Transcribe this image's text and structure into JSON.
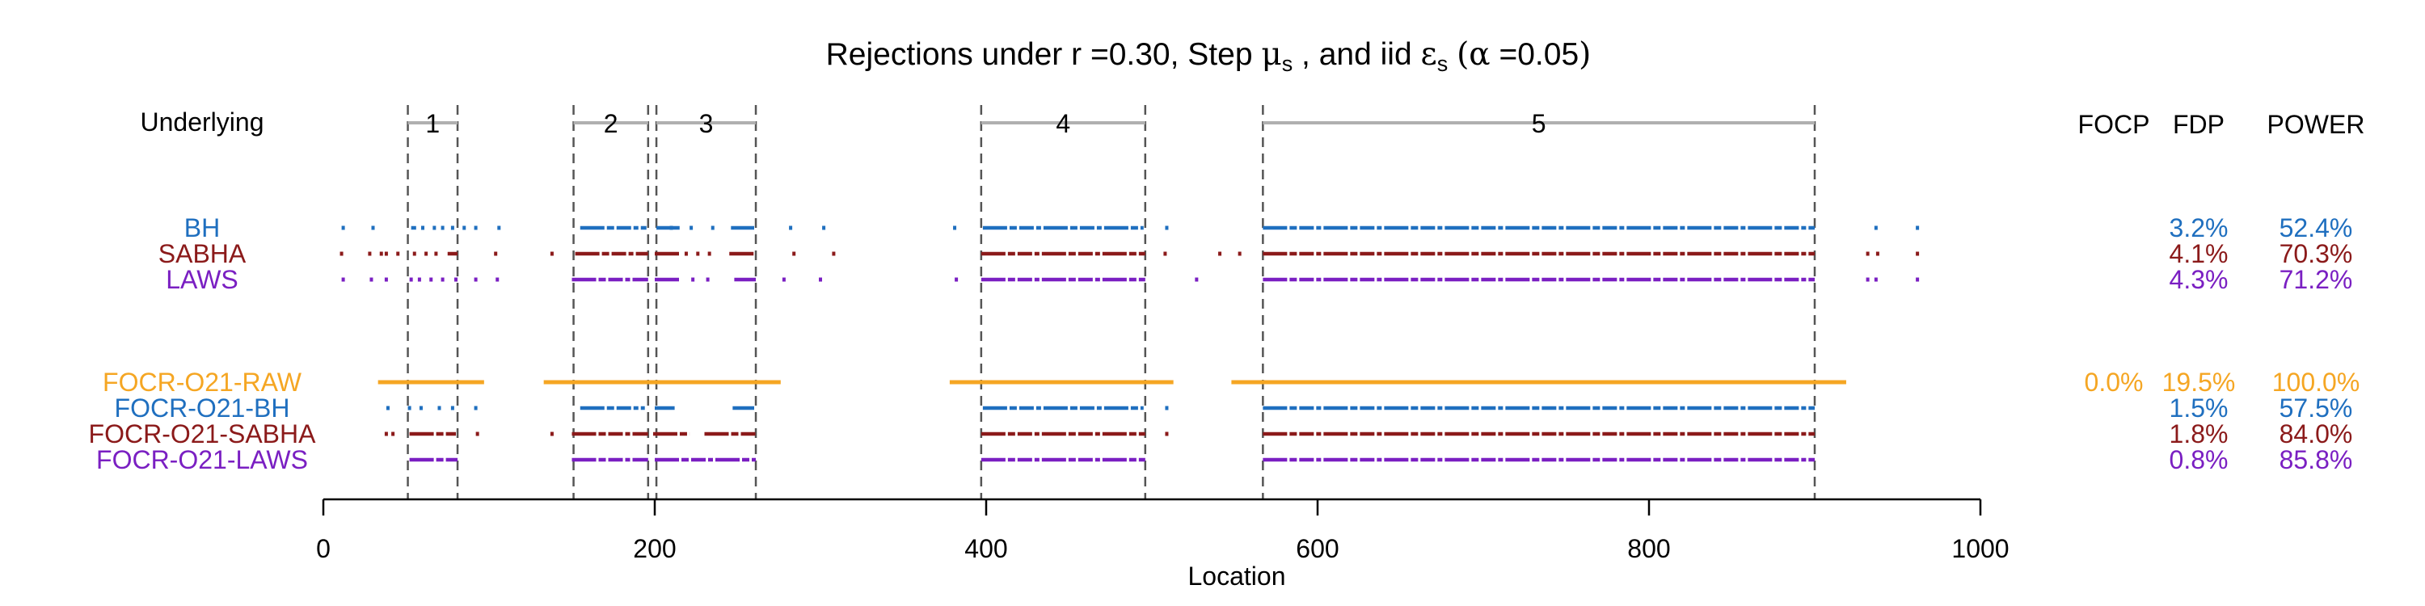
{
  "title_parts": {
    "prefix": "Rejections under  r =0.30,  Step ",
    "mu": "μ",
    "mu_sub": "s",
    "middle": " , and iid  ",
    "eps": "ε",
    "eps_sub": "s",
    "alpha_open": "(",
    "alpha": "α",
    "alpha_rest": " =0.05",
    "alpha_close": ")"
  },
  "header_labels": {
    "underlying": "Underlying",
    "focp": "FOCP",
    "fdp": "FDP",
    "power": "POWER"
  },
  "colors": {
    "BH": "#1f6fbf",
    "SABHA": "#8b1a1a",
    "LAWS": "#7a1fc2",
    "RAW": "#f5a623",
    "grid": "#555555",
    "bracket": "#b0b0b0"
  },
  "chart_data": {
    "type": "scatter",
    "title": "Rejections under r =0.30, Step μs , and iid εs (α =0.05)",
    "xlabel": "Location",
    "xlim": [
      0,
      1000
    ],
    "xticks": [
      "0",
      "200",
      "400",
      "600",
      "800",
      "1000"
    ],
    "underlying_segments": [
      {
        "label": "1",
        "start": 51,
        "end": 81
      },
      {
        "label": "2",
        "start": 151,
        "end": 196
      },
      {
        "label": "3",
        "start": 201,
        "end": 261
      },
      {
        "label": "4",
        "start": 397,
        "end": 496
      },
      {
        "label": "5",
        "start": 567,
        "end": 900
      }
    ],
    "series": [
      {
        "name": "BH",
        "color_key": "BH",
        "style": "dots",
        "segments": [
          [
            53,
            56
          ],
          [
            155,
            195
          ],
          [
            201,
            215
          ],
          [
            246,
            260
          ],
          [
            398,
            495
          ],
          [
            567,
            900
          ]
        ],
        "points": [
          12,
          30,
          60,
          67,
          72,
          78,
          85,
          92,
          106,
          210,
          222,
          235,
          282,
          302,
          381,
          509,
          937,
          962
        ],
        "fdp": "3.2%",
        "power": "52.4%"
      },
      {
        "name": "SABHA",
        "color_key": "SABHA",
        "style": "dots",
        "segments": [
          [
            75,
            81
          ],
          [
            152,
            196
          ],
          [
            200,
            215
          ],
          [
            245,
            261
          ],
          [
            397,
            496
          ],
          [
            567,
            900
          ]
        ],
        "points": [
          11,
          28,
          35,
          38,
          45,
          55,
          62,
          68,
          104,
          138,
          219,
          226,
          233,
          284,
          308,
          508,
          541,
          553,
          932,
          938,
          962
        ],
        "fdp": "4.1%",
        "power": "70.3%"
      },
      {
        "name": "LAWS",
        "color_key": "LAWS",
        "style": "dots",
        "segments": [
          [
            150,
            196
          ],
          [
            200,
            215
          ],
          [
            248,
            261
          ],
          [
            397,
            496
          ],
          [
            567,
            900
          ]
        ],
        "points": [
          12,
          29,
          38,
          53,
          58,
          65,
          72,
          80,
          92,
          105,
          223,
          232,
          278,
          300,
          382,
          527,
          932,
          937,
          962
        ],
        "fdp": "4.3%",
        "power": "71.2%"
      },
      {
        "name": "FOCR-O21-RAW",
        "color_key": "RAW",
        "style": "line",
        "segments": [
          [
            33,
            97
          ],
          [
            133,
            276
          ],
          [
            378,
            513
          ],
          [
            548,
            919
          ]
        ],
        "points": [],
        "focp": "0.0%",
        "fdp": "19.5%",
        "power": "100.0%"
      },
      {
        "name": "FOCR-O21-BH",
        "color_key": "BH",
        "style": "dots",
        "segments": [
          [
            155,
            194
          ],
          [
            200,
            212
          ],
          [
            247,
            260
          ],
          [
            398,
            495
          ],
          [
            567,
            900
          ]
        ],
        "points": [
          39,
          52,
          59,
          70,
          78,
          92,
          509
        ],
        "fdp": "1.5%",
        "power": "57.5%"
      },
      {
        "name": "FOCR-O21-SABHA",
        "color_key": "SABHA",
        "style": "dots",
        "segments": [
          [
            52,
            80
          ],
          [
            150,
            196
          ],
          [
            199,
            221
          ],
          [
            230,
            261
          ],
          [
            397,
            496
          ],
          [
            567,
            900
          ]
        ],
        "points": [
          38,
          42,
          93,
          138,
          509
        ],
        "fdp": "1.8%",
        "power": "84.0%"
      },
      {
        "name": "FOCR-O21-LAWS",
        "color_key": "LAWS",
        "style": "dots",
        "segments": [
          [
            52,
            81
          ],
          [
            150,
            196
          ],
          [
            200,
            261
          ],
          [
            397,
            496
          ],
          [
            567,
            900
          ]
        ],
        "points": [],
        "fdp": "0.8%",
        "power": "85.8%"
      }
    ]
  }
}
